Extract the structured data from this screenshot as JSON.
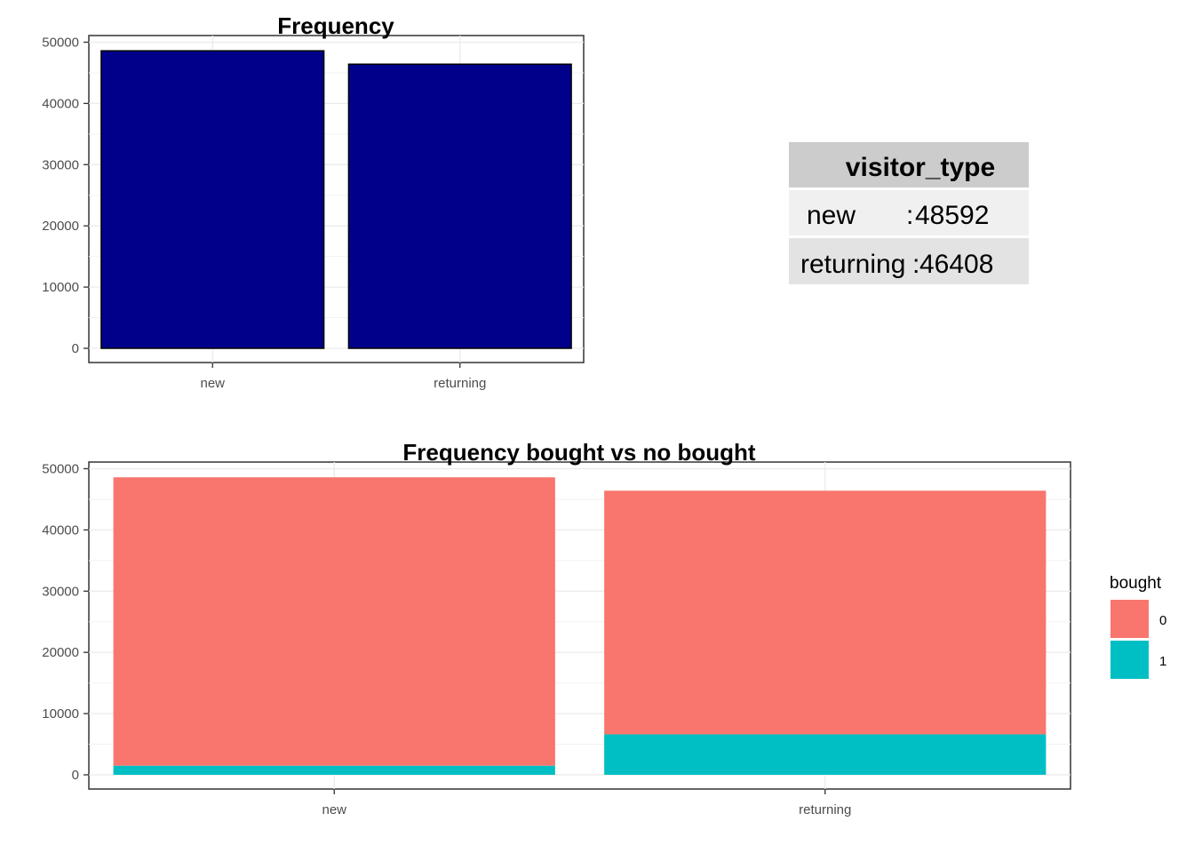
{
  "chart_data": [
    {
      "type": "bar",
      "title": "Frequency",
      "xlabel": "",
      "ylabel": "",
      "categories": [
        "new",
        "returning"
      ],
      "values": [
        48592,
        46408
      ],
      "ylim": [
        0,
        50000
      ],
      "yticks": [
        0,
        10000,
        20000,
        30000,
        40000,
        50000
      ],
      "fill_color": "#00008B",
      "grid": true,
      "legend": "none"
    },
    {
      "type": "bar",
      "stacked": true,
      "title": "Frequency bought vs no bought",
      "xlabel": "",
      "ylabel": "",
      "categories": [
        "new",
        "returning"
      ],
      "series": [
        {
          "name": "0",
          "values": [
            47100,
            39800
          ],
          "color": "#F8766D"
        },
        {
          "name": "1",
          "values": [
            1492,
            6608
          ],
          "color": "#00BFC4"
        }
      ],
      "ylim": [
        0,
        50000
      ],
      "yticks": [
        0,
        10000,
        20000,
        30000,
        40000,
        50000
      ],
      "grid": true,
      "legend": {
        "title": "bought",
        "position": "right"
      }
    }
  ],
  "summary_table": {
    "header": "visitor_type",
    "rows": [
      {
        "label": "new",
        "sep": ":",
        "value": "48592"
      },
      {
        "label": "returning",
        "sep": ":",
        "value": "46408"
      }
    ]
  }
}
